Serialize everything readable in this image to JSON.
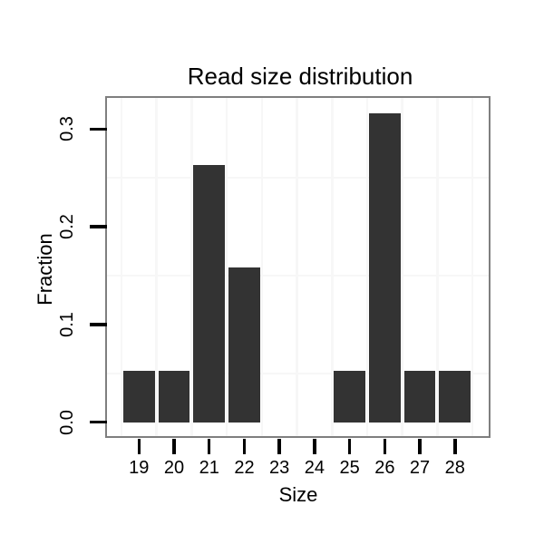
{
  "chart_data": {
    "type": "bar",
    "title": "Read size distribution",
    "xlabel": "Size",
    "ylabel": "Fraction",
    "categories": [
      "19",
      "20",
      "21",
      "22",
      "23",
      "24",
      "25",
      "26",
      "27",
      "28"
    ],
    "values": [
      0.0526,
      0.0526,
      0.2632,
      0.1579,
      0,
      0,
      0.0526,
      0.3158,
      0.0526,
      0.0526
    ],
    "y_ticks": [
      {
        "value": 0.0,
        "label": "0.0"
      },
      {
        "value": 0.1,
        "label": "0.1"
      },
      {
        "value": 0.2,
        "label": "0.2"
      },
      {
        "value": 0.3,
        "label": "0.3"
      }
    ],
    "ylim": [
      -0.015,
      0.332
    ],
    "y_minor_gridlines": [
      0.05,
      0.15,
      0.25
    ],
    "x_minor_gridlines": "half-steps-between-categories",
    "legend": "none",
    "grid": "minor-only",
    "colors": {
      "bar": "#333333",
      "panel_border": "#7f7f7f",
      "grid_minor": "#f7f7f7",
      "axis_tick": "#000000",
      "text": "#000000",
      "background": "#ffffff"
    }
  }
}
